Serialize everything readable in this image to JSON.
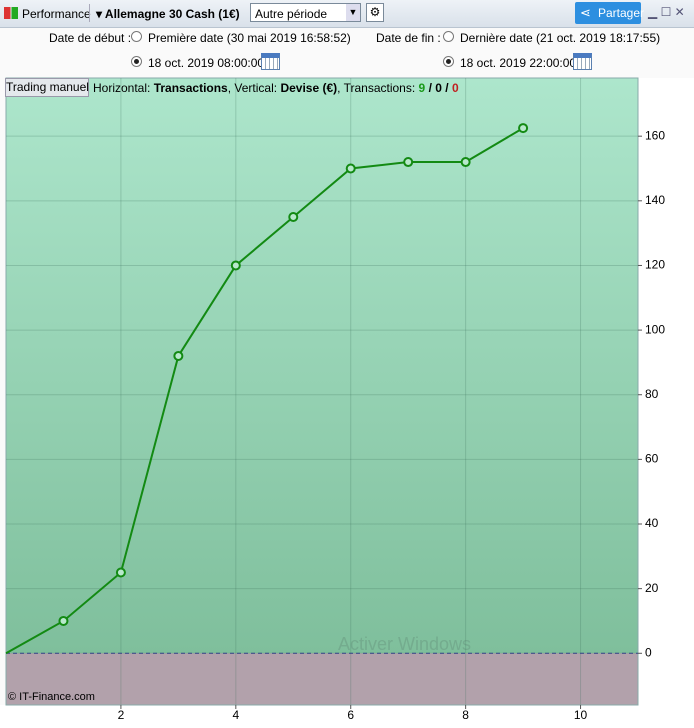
{
  "toolbar": {
    "module": "Performance",
    "instrument": "Allemagne 30 Cash (1€)",
    "period": "Autre période",
    "share": "Partager"
  },
  "date_filters": {
    "start_label": "Date de début :",
    "start_first": "Première date (30 mai 2019 16:58:52)",
    "start_custom": "18 oct. 2019 08:00:00",
    "end_label": "Date de fin :",
    "end_last": "Dernière date (21 oct. 2019 18:17:55)",
    "end_custom": "18 oct. 2019 22:00:00"
  },
  "panel": {
    "tab": "Trading manuel",
    "info": {
      "horizontal_label": "Horizontal:",
      "horizontal_value": "Transactions",
      "vertical_label": ", Vertical:",
      "vertical_value": "Devise (€)",
      "count_label": ", Transactions:",
      "wins": "9",
      "sep1": "/",
      "neutral": "0",
      "sep2": "/",
      "losses": "0"
    },
    "watermark": "Activer Windows",
    "copyright": "© IT-Finance.com"
  },
  "chart_data": {
    "type": "line",
    "x": [
      0,
      1,
      2,
      3,
      4,
      5,
      6,
      7,
      8,
      9
    ],
    "series": [
      {
        "color": "#138a13",
        "values": [
          0,
          10,
          25,
          92,
          120,
          135,
          150,
          152,
          152,
          162.5
        ]
      }
    ],
    "xlim": [
      0,
      11
    ],
    "ylim": [
      -16,
      178
    ],
    "xticks": [
      2,
      4,
      6,
      8,
      10
    ],
    "yticks": [
      0,
      20,
      40,
      60,
      80,
      100,
      120,
      140,
      160
    ],
    "grid": true,
    "y_axis_side": "right"
  }
}
